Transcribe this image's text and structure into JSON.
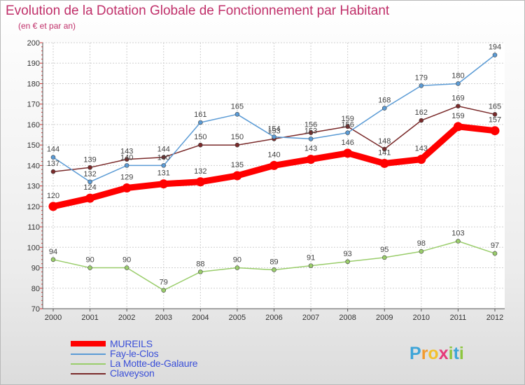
{
  "header": {
    "title": "Evolution de la Dotation Globale de Fonctionnement par Habitant",
    "subtitle": "(en € et par an)"
  },
  "logo": {
    "letters": [
      "P",
      "r",
      "o",
      "x",
      "i",
      "t",
      "i"
    ],
    "colors": [
      "#3fa5d8",
      "#f29a2e",
      "#f2c12e",
      "#e6397a",
      "#8dc63f",
      "#3fa5d8",
      "#8dc63f"
    ]
  },
  "chart_data": {
    "type": "line",
    "x": [
      2000,
      2001,
      2002,
      2003,
      2004,
      2005,
      2006,
      2007,
      2008,
      2009,
      2010,
      2011,
      2012
    ],
    "ylim": [
      70,
      200
    ],
    "yticks": [
      70,
      80,
      90,
      100,
      110,
      120,
      130,
      140,
      150,
      160,
      170,
      180,
      190,
      200
    ],
    "grid": true,
    "legend_position": "bottom-left",
    "series": [
      {
        "name": "MUREILS",
        "color": "#ff0000",
        "values": [
          120,
          124,
          129,
          131,
          132,
          135,
          140,
          143,
          146,
          141,
          143,
          159,
          157
        ]
      },
      {
        "name": "Fay-le-Clos",
        "color": "#5b9bd5",
        "values": [
          144,
          132,
          140,
          140,
          161,
          165,
          154,
          153,
          156,
          168,
          179,
          180,
          194
        ]
      },
      {
        "name": "La Motte-de-Galaure",
        "color": "#9acd6b",
        "values": [
          94,
          90,
          90,
          79,
          88,
          90,
          89,
          91,
          93,
          95,
          98,
          103,
          97
        ]
      },
      {
        "name": "Claveyson",
        "color": "#7a2a2a",
        "values": [
          137,
          139,
          143,
          144,
          150,
          150,
          153,
          156,
          159,
          148,
          162,
          169,
          165
        ]
      }
    ]
  }
}
